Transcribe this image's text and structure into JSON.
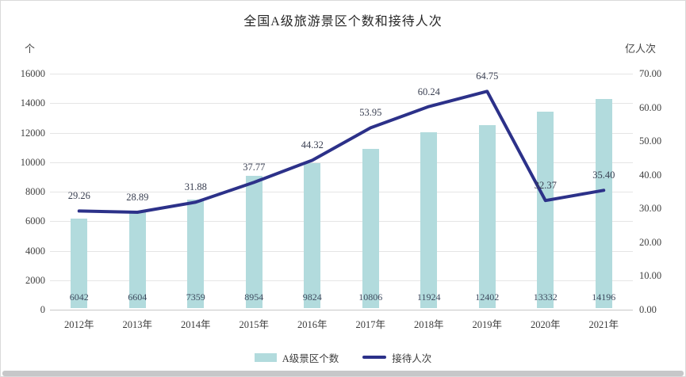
{
  "title": "全国A级旅游景区个数和接待人次",
  "chart_data": {
    "type": "bar",
    "combo": "bar+line-dual-axis",
    "title": "全国A级旅游景区个数和接待人次",
    "categories": [
      "2012年",
      "2013年",
      "2014年",
      "2015年",
      "2016年",
      "2017年",
      "2018年",
      "2019年",
      "2020年",
      "2021年"
    ],
    "series": [
      {
        "name": "A级景区个数",
        "type": "bar",
        "axis": "left",
        "color": "#b2dbdd",
        "values": [
          6042,
          6604,
          7359,
          8954,
          9824,
          10806,
          11924,
          12402,
          13332,
          14196
        ],
        "labels": [
          "6042",
          "6604",
          "7359",
          "8954",
          "9824",
          "10806",
          "11924",
          "12402",
          "13332",
          "14196"
        ]
      },
      {
        "name": "接待人次",
        "type": "line",
        "axis": "right",
        "color": "#2c3189",
        "values": [
          29.26,
          28.89,
          31.88,
          37.77,
          44.32,
          53.95,
          60.24,
          64.75,
          32.37,
          35.4
        ],
        "labels": [
          "29.26",
          "28.89",
          "31.88",
          "37.77",
          "44.32",
          "53.95",
          "60.24",
          "64.75",
          "32.37",
          "35.40"
        ]
      }
    ],
    "left_axis": {
      "unit": "个",
      "min": 0,
      "max": 16000,
      "step": 2000,
      "tick_labels": [
        "0",
        "2000",
        "4000",
        "6000",
        "8000",
        "10000",
        "12000",
        "14000",
        "16000"
      ]
    },
    "right_axis": {
      "unit": "亿人次",
      "min": 0,
      "max": 70,
      "step": 10,
      "tick_labels": [
        "0.00",
        "10.00",
        "20.00",
        "30.00",
        "40.00",
        "50.00",
        "60.00",
        "70.00"
      ]
    },
    "grid": true,
    "legend_position": "bottom"
  },
  "legend": {
    "items": [
      {
        "label": "A级景区个数",
        "swatch": "bar",
        "color": "#b2dbdd"
      },
      {
        "label": "接待人次",
        "swatch": "line",
        "color": "#2c3189"
      }
    ]
  },
  "colors": {
    "bar": "#b2dbdd",
    "line": "#2c3189",
    "grid": "#e5e5e5",
    "baseline": "#c8c8c8",
    "tick_text": "#3f3f3f",
    "bar_label_text": "#3e4a5e",
    "line_label_text": "#383e50",
    "title_text": "#262626",
    "bottom_strip": "#c7c7c9"
  }
}
